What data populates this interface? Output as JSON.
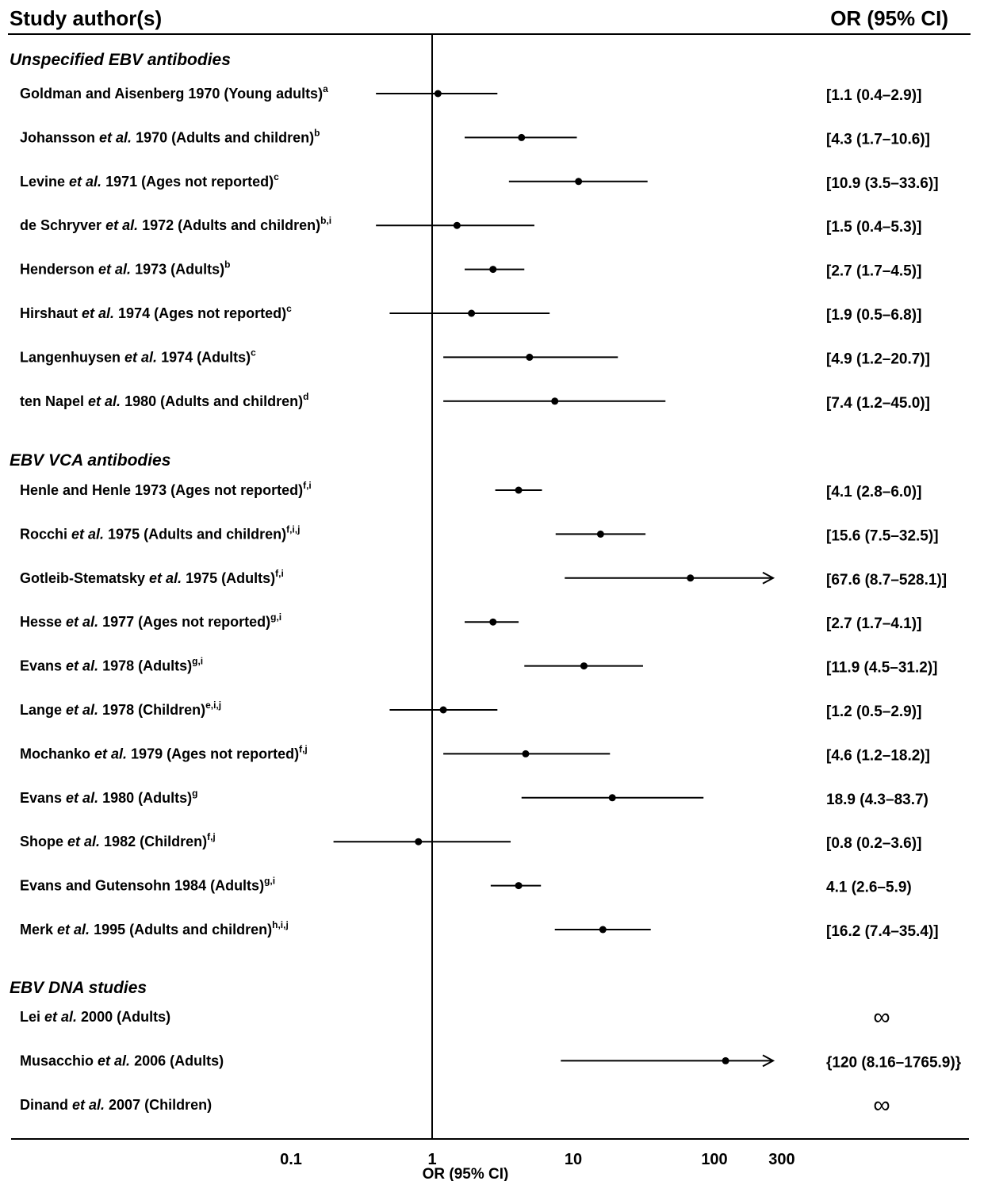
{
  "chart_data": {
    "type": "forest",
    "xscale": "log",
    "xlim": [
      0.05,
      300
    ],
    "xticks": [
      0.1,
      1,
      10,
      100,
      300
    ],
    "xtick_labels": [
      "0.1",
      "1",
      "10",
      "100",
      "300"
    ],
    "reference_line": 1,
    "xlabel": "OR (95% CI)",
    "header_left": "Study author(s)",
    "header_right": "OR (95% CI)",
    "groups": [
      {
        "name": "Unspecified EBV antibodies",
        "studies": [
          {
            "pre": "Goldman and Aisenberg",
            "em": "",
            "post": "1970 (Young adults)",
            "sup": "a",
            "or": 1.1,
            "lo": 0.4,
            "hi": 2.9,
            "label": "[1.1 (0.4–2.9)]"
          },
          {
            "pre": "Johansson",
            "em": "et al.",
            "post": "1970 (Adults and children)",
            "sup": "b",
            "or": 4.3,
            "lo": 1.7,
            "hi": 10.6,
            "label": "[4.3 (1.7–10.6)]"
          },
          {
            "pre": "Levine",
            "em": "et al.",
            "post": "1971 (Ages not reported)",
            "sup": "c",
            "or": 10.9,
            "lo": 3.5,
            "hi": 33.6,
            "label": "[10.9 (3.5–33.6)]"
          },
          {
            "pre": "de Schryver",
            "em": "et al.",
            "post": "1972 (Adults and children)",
            "sup": "b,i",
            "or": 1.5,
            "lo": 0.4,
            "hi": 5.3,
            "label": "[1.5 (0.4–5.3)]"
          },
          {
            "pre": "Henderson",
            "em": "et al.",
            "post": "1973 (Adults)",
            "sup": "b",
            "or": 2.7,
            "lo": 1.7,
            "hi": 4.5,
            "label": "[2.7 (1.7–4.5)]"
          },
          {
            "pre": "Hirshaut",
            "em": "et al.",
            "post": "1974 (Ages not reported)",
            "sup": "c",
            "or": 1.9,
            "lo": 0.5,
            "hi": 6.8,
            "label": "[1.9 (0.5–6.8)]"
          },
          {
            "pre": "Langenhuysen",
            "em": "et al.",
            "post": "1974 (Adults)",
            "sup": "c",
            "or": 4.9,
            "lo": 1.2,
            "hi": 20.7,
            "label": "[4.9 (1.2–20.7)]"
          },
          {
            "pre": "ten Napel",
            "em": "et al.",
            "post": "1980 (Adults and children)",
            "sup": "d",
            "or": 7.4,
            "lo": 1.2,
            "hi": 45.0,
            "label": "[7.4 (1.2–45.0)]"
          }
        ]
      },
      {
        "name": "EBV VCA antibodies",
        "studies": [
          {
            "pre": "Henle and Henle",
            "em": "",
            "post": "1973 (Ages not reported)",
            "sup": "f,i",
            "or": 4.1,
            "lo": 2.8,
            "hi": 6.0,
            "label": "[4.1 (2.8–6.0)]"
          },
          {
            "pre": "Rocchi",
            "em": "et al.",
            "post": "1975 (Adults and children)",
            "sup": "f,i,j",
            "or": 15.6,
            "lo": 7.5,
            "hi": 32.5,
            "label": "[15.6 (7.5–32.5)]"
          },
          {
            "pre": "Gotleib-Stematsky",
            "em": "et al.",
            "post": "1975 (Adults)",
            "sup": "f,i",
            "or": 67.6,
            "lo": 8.7,
            "hi": 528.1,
            "label": "[67.6 (8.7–528.1)]",
            "arrow": true
          },
          {
            "pre": "Hesse",
            "em": "et al.",
            "post": "1977 (Ages not reported)",
            "sup": "g,i",
            "or": 2.7,
            "lo": 1.7,
            "hi": 4.1,
            "label": "[2.7 (1.7–4.1)]"
          },
          {
            "pre": "Evans",
            "em": "et al.",
            "post": "1978 (Adults)",
            "sup": "g,i",
            "or": 11.9,
            "lo": 4.5,
            "hi": 31.2,
            "label": "[11.9 (4.5–31.2)]"
          },
          {
            "pre": "Lange",
            "em": "et al.",
            "post": "1978 (Children)",
            "sup": "e,i,j",
            "or": 1.2,
            "lo": 0.5,
            "hi": 2.9,
            "label": "[1.2 (0.5–2.9)]"
          },
          {
            "pre": "Mochanko",
            "em": "et al.",
            "post": "1979 (Ages not reported)",
            "sup": "f,j",
            "or": 4.6,
            "lo": 1.2,
            "hi": 18.2,
            "label": "[4.6 (1.2–18.2)]"
          },
          {
            "pre": "Evans",
            "em": "et al.",
            "post": "1980 (Adults)",
            "sup": "g",
            "or": 18.9,
            "lo": 4.3,
            "hi": 83.7,
            "label": "18.9 (4.3–83.7)"
          },
          {
            "pre": "Shope",
            "em": "et al.",
            "post": "1982 (Children)",
            "sup": "f,j",
            "or": 0.8,
            "lo": 0.2,
            "hi": 3.6,
            "label": "[0.8 (0.2–3.6)]"
          },
          {
            "pre": "Evans and Gutensohn",
            "em": "",
            "post": "1984 (Adults)",
            "sup": "g,i",
            "or": 4.1,
            "lo": 2.6,
            "hi": 5.9,
            "label": "4.1 (2.6–5.9)"
          },
          {
            "pre": "Merk",
            "em": "et al.",
            "post": "1995 (Adults and children)",
            "sup": "h,i,j",
            "or": 16.2,
            "lo": 7.4,
            "hi": 35.4,
            "label": "[16.2 (7.4–35.4)]"
          }
        ]
      },
      {
        "name": "EBV DNA studies",
        "studies": [
          {
            "pre": "Lei",
            "em": "et al.",
            "post": "2000 (Adults)",
            "sup": "",
            "or": null,
            "lo": null,
            "hi": null,
            "label": "∞"
          },
          {
            "pre": "Musacchio",
            "em": "et al.",
            "post": "2006 (Adults)",
            "sup": "",
            "or": 120,
            "lo": 8.16,
            "hi": 1765.9,
            "label": "{120 (8.16–1765.9)}",
            "arrow": true
          },
          {
            "pre": "Dinand",
            "em": "et al.",
            "post": "2007 (Children)",
            "sup": "",
            "or": null,
            "lo": null,
            "hi": null,
            "label": "∞"
          }
        ]
      }
    ]
  }
}
